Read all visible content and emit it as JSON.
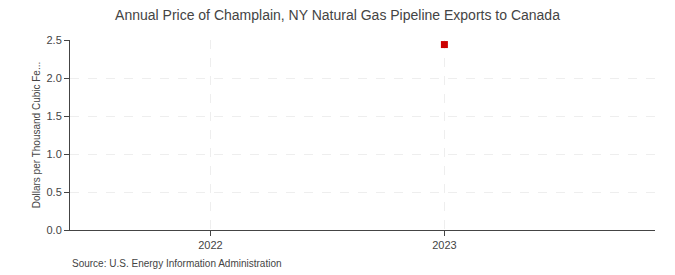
{
  "chart_data": {
    "type": "scatter",
    "title": "Annual Price of Champlain, NY Natural Gas Pipeline Exports to Canada",
    "ylabel": "Dollars per Thousand Cubic Fe...",
    "source": "Source: U.S. Energy Information Administration",
    "x": [
      2023
    ],
    "values": [
      2.44
    ],
    "color": "#cc0000",
    "marker": "square",
    "xlim": [
      2021.4,
      2023.9
    ],
    "xticks": [
      2022,
      2023
    ],
    "ylim": [
      0.0,
      2.5
    ],
    "yticks": [
      {
        "value": 0.0,
        "label": "0.0"
      },
      0.5,
      {
        "value": 1.0,
        "label": "1.0"
      },
      1.5,
      {
        "value": 2.0,
        "label": "2.0"
      },
      2.5
    ],
    "grid": true
  }
}
